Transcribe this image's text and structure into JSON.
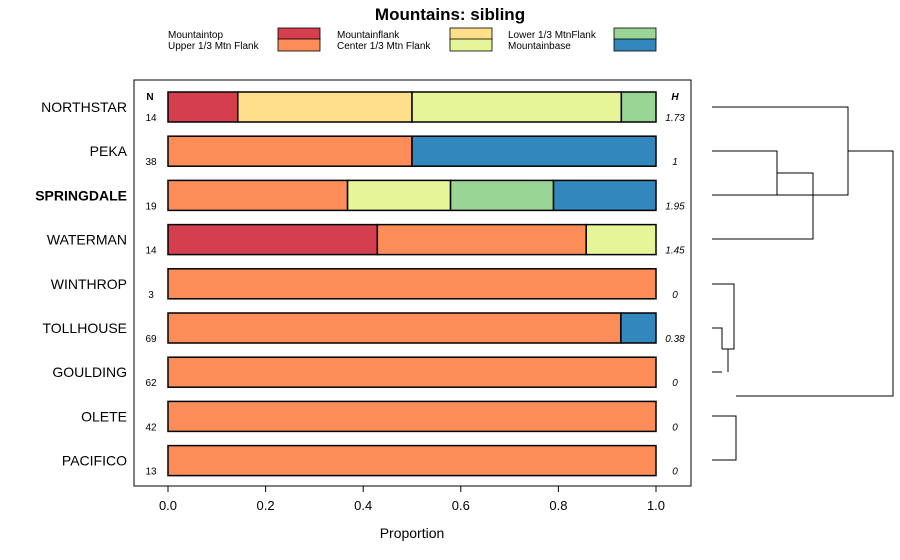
{
  "chart_data": {
    "type": "bar",
    "stacked": true,
    "orientation": "horizontal",
    "title": "Mountains: sibling",
    "xlabel": "Proportion",
    "xlim": [
      0,
      1
    ],
    "xticks": [
      "0.0",
      "0.2",
      "0.4",
      "0.6",
      "0.8",
      "1.0"
    ],
    "n_header": "N",
    "h_header": "H",
    "legend_position": "top",
    "legend": [
      {
        "name": "Mountaintop",
        "color": "#d53e4f"
      },
      {
        "name": "Upper 1/3 Mtn Flank",
        "color": "#fc8d59"
      },
      {
        "name": "Mountainflank",
        "color": "#fee08b"
      },
      {
        "name": "Center 1/3 Mtn Flank",
        "color": "#e6f598"
      },
      {
        "name": "Lower 1/3 MtnFlank",
        "color": "#99d594"
      },
      {
        "name": "Mountainbase",
        "color": "#3288bd"
      }
    ],
    "categories": [
      "NORTHSTAR",
      "PEKA",
      "SPRINGDALE",
      "WATERMAN",
      "WINTHROP",
      "TOLLHOUSE",
      "GOULDING",
      "OLETE",
      "PACIFICO"
    ],
    "bold_category": "SPRINGDALE",
    "N": [
      "14",
      "38",
      "19",
      "14",
      "3",
      "69",
      "62",
      "42",
      "13"
    ],
    "H": [
      "1.73",
      "1",
      "1.95",
      "1.45",
      "0",
      "0.38",
      "0",
      "0",
      "0"
    ],
    "series": [
      {
        "name": "Mountaintop",
        "values": [
          0.143,
          0,
          0,
          0.429,
          0,
          0,
          0,
          0,
          0
        ]
      },
      {
        "name": "Upper 1/3 Mtn Flank",
        "values": [
          0,
          0.5,
          0.368,
          0.428,
          1,
          0.928,
          1,
          1,
          1
        ]
      },
      {
        "name": "Mountainflank",
        "values": [
          0.357,
          0,
          0,
          0,
          0,
          0,
          0,
          0,
          0
        ]
      },
      {
        "name": "Center 1/3 Mtn Flank",
        "values": [
          0.429,
          0,
          0.211,
          0.143,
          0,
          0,
          0,
          0,
          0
        ]
      },
      {
        "name": "Lower 1/3 MtnFlank",
        "values": [
          0.071,
          0,
          0.211,
          0,
          0,
          0,
          0,
          0,
          0
        ]
      },
      {
        "name": "Mountainbase",
        "values": [
          0,
          0.5,
          0.21,
          0,
          0,
          0.072,
          0,
          0,
          0
        ]
      }
    ],
    "dendrogram": "present"
  }
}
